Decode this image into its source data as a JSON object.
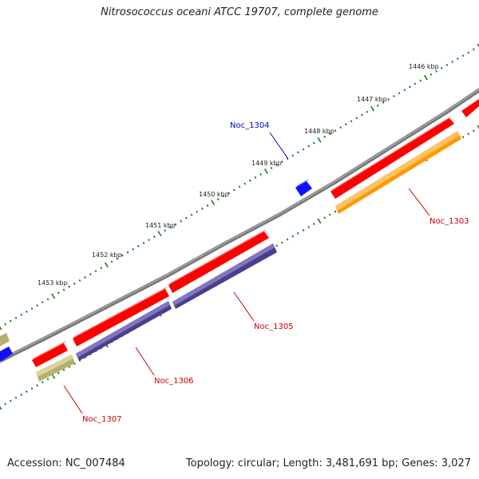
{
  "title": "Nitrosococcus oceani ATCC 19707, complete genome",
  "footer": {
    "accession": "Accession: NC_007484",
    "summary": "Topology: circular; Length: 3,481,691 bp; Genes: 3,027"
  },
  "scale_labels": [
    "1446 kbp",
    "1447 kbp",
    "1448 kbp",
    "1449 kbp",
    "1450 kbp",
    "1451 kbp",
    "1452 kbp",
    "1453 kbp"
  ],
  "gene_labels": {
    "noc_1304": "Noc_1304",
    "noc_1303": "Noc_1303",
    "noc_1305": "Noc_1305",
    "noc_1306": "Noc_1306",
    "noc_1307": "Noc_1307"
  },
  "colors": {
    "backbone": "#7a7a7a",
    "forward_gene": "#ff0000",
    "blue_gene": "#1010ff",
    "orange_gene": "#ff9900",
    "purple_gene": "#4b3f8c",
    "olive_gene": "#b5b070",
    "tick": "#1a7a1a",
    "red_label": "#cc0000",
    "blue_label": "#0000cc"
  }
}
